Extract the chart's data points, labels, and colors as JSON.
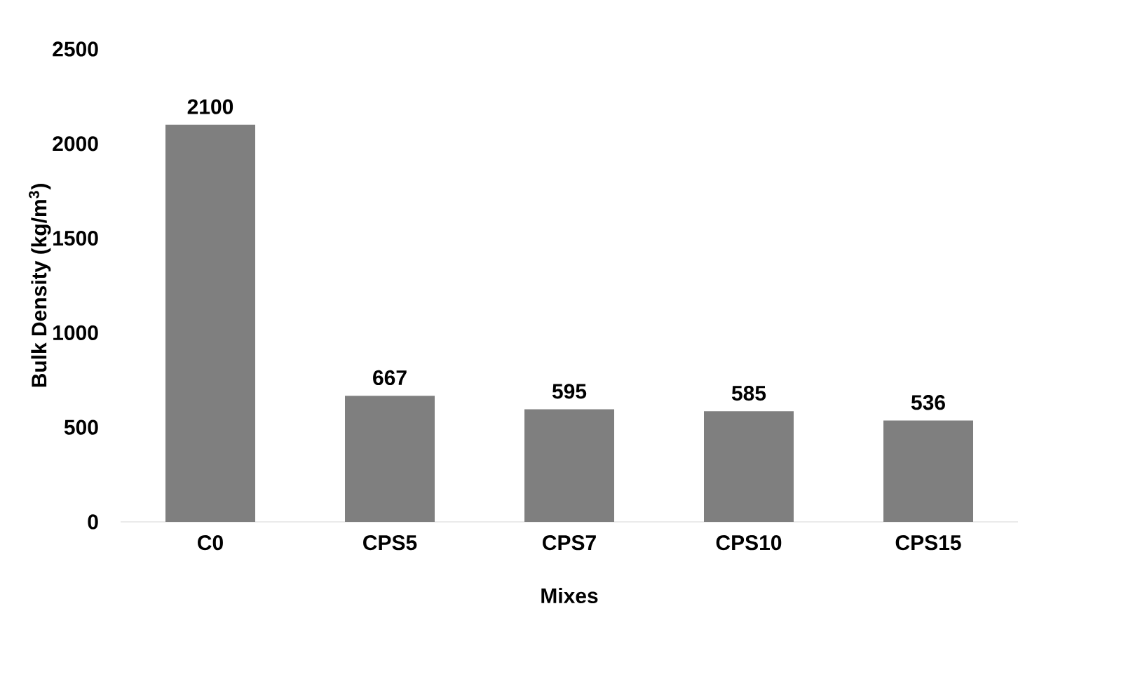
{
  "chart_data": {
    "type": "bar",
    "xlabel": "Mixes",
    "ylabel": "Bulk Density (kg/m$^{3}$)",
    "categories": [
      "C0",
      "CPS5",
      "CPS7",
      "CPS10",
      "CPS15"
    ],
    "values": [
      2100,
      667,
      595,
      585,
      536
    ],
    "color": "#7f7f7f",
    "ylim": [
      0,
      2500
    ],
    "yticks": [
      0,
      500,
      1000,
      1500,
      2000,
      2500
    ],
    "data_labels": true
  }
}
